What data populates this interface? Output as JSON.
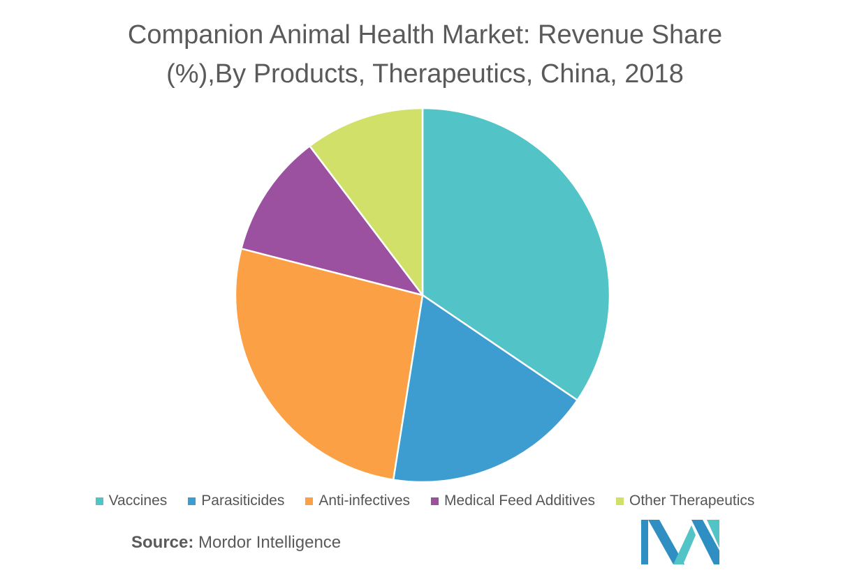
{
  "chart_data": {
    "type": "pie",
    "title_line1": "Companion Animal Health Market: Revenue Share",
    "title_line2": "(%),By Products, Therapeutics, China, 2018",
    "legend_position": "bottom",
    "slices": [
      {
        "label": "Vaccines",
        "value": 34.5,
        "color": "#52c3c6"
      },
      {
        "label": "Parasiticides",
        "value": 18.0,
        "color": "#3d9dd0"
      },
      {
        "label": "Anti-infectives",
        "value": 26.5,
        "color": "#fba044"
      },
      {
        "label": "Medical Feed Additives",
        "value": 10.7,
        "color": "#9b51a0"
      },
      {
        "label": "Other Therapeutics",
        "value": 10.3,
        "color": "#d0e068"
      }
    ]
  },
  "source": {
    "prefix": "Source:",
    "text": "Mordor Intelligence"
  },
  "logo": {
    "name": "mordor-intelligence-logo",
    "colors": [
      "#2f8fc3",
      "#52c3c6"
    ]
  }
}
